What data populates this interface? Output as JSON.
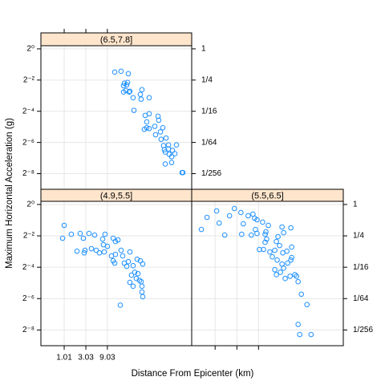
{
  "chart_data": {
    "type": "scatter",
    "xlabel": "Distance From Epicenter (km)",
    "ylabel": "Maximum Horizontal Acceleration (g)",
    "log_x": true,
    "log_y": true,
    "grid": true,
    "color": "#1e90ff",
    "strip_color": "#ffe5cc",
    "xlim": [
      0.31,
      650
    ],
    "ylim": [
      0.00195,
      1.15
    ],
    "xticks": [
      1.01,
      3.03,
      9.03
    ],
    "yticks": [
      {
        "value": 1,
        "label": "2⁰"
      },
      {
        "value": 0.25,
        "label": "2⁻²"
      },
      {
        "value": 0.0625,
        "label": "2⁻⁴"
      },
      {
        "value": 0.015625,
        "label": "2⁻⁶"
      },
      {
        "value": 0.00390625,
        "label": "2⁻⁸"
      }
    ],
    "y2ticks": [
      {
        "value": 1,
        "label": "1"
      },
      {
        "value": 0.25,
        "label": "1/4"
      },
      {
        "value": 0.0625,
        "label": "1/16"
      },
      {
        "value": 0.015625,
        "label": "1/64"
      },
      {
        "value": 0.00390625,
        "label": "1/256"
      }
    ],
    "panels": [
      {
        "name": "(6.5,7.8]",
        "x": [
          13.1,
          18.1,
          26.1,
          21.3,
          24.1,
          20.5,
          25.1,
          23.1,
          27.2,
          20.5,
          28.3,
          52.1,
          48.1,
          50,
          33.3,
          75.2,
          34.7,
          61.4,
          75.2,
          118,
          66.5,
          66.5,
          58.9,
          75.2,
          100,
          122,
          104,
          133,
          150,
          177,
          138,
          163,
          156,
          200,
          200,
          170,
          245,
          208,
          300,
          277,
          170,
          235,
          235,
          415,
          399
        ],
        "y": [
          0.357,
          0.37,
          0.332,
          0.217,
          0.202,
          0.195,
          0.225,
          0.157,
          0.147,
          0.147,
          0.152,
          0.163,
          0.132,
          0.107,
          0.114,
          0.114,
          0.065,
          0.052,
          0.056,
          0.05,
          0.039,
          0.03,
          0.028,
          0.029,
          0.032,
          0.042,
          0.022,
          0.025,
          0.03,
          0.019,
          0.018,
          0.0113,
          0.0136,
          0.014,
          0.0117,
          0.0102,
          0.011,
          0.0092,
          0.014,
          0.0095,
          0.006,
          0.0064,
          0.0083,
          0.0041,
          0.0041
        ]
      },
      {
        "name": "(4.9,5.5]",
        "x": [
          1.01,
          0.93,
          1.45,
          2.27,
          3.56,
          2.67,
          4.73,
          8.02,
          7.1,
          12.1,
          15.4,
          13.6,
          7.4,
          9.06,
          4.02,
          1.93,
          2.9,
          5.13,
          2.79,
          6.04,
          7.71,
          11.1,
          13.6,
          18.1,
          19.6,
          28.3,
          12.1,
          13.1,
          21.3,
          26.1,
          24.1,
          33.3,
          40.8,
          48.1,
          54.3,
          36.1,
          30.7,
          42.5,
          39.2,
          28.3,
          46.1,
          50,
          52.1,
          33.3,
          52.1,
          54.3,
          17.4
        ],
        "y": [
          0.397,
          0.225,
          0.268,
          0.278,
          0.278,
          0.225,
          0.259,
          0.268,
          0.217,
          0.225,
          0.209,
          0.195,
          0.169,
          0.157,
          0.142,
          0.127,
          0.132,
          0.132,
          0.118,
          0.118,
          0.123,
          0.103,
          0.11,
          0.132,
          0.103,
          0.123,
          0.083,
          0.075,
          0.075,
          0.08,
          0.065,
          0.067,
          0.089,
          0.083,
          0.072,
          0.05,
          0.044,
          0.047,
          0.038,
          0.032,
          0.035,
          0.033,
          0.027,
          0.027,
          0.021,
          0.017,
          0.0117
        ]
      },
      {
        "name": "(5.5,6.5]",
        "x": [
          0.505,
          0.671,
          1.24,
          1.09,
          2.09,
          2.67,
          3.71,
          1.64,
          3.86,
          4.19,
          5.35,
          6.82,
          7.4,
          8.36,
          7.71,
          8.36,
          6.28,
          12.6,
          11.1,
          13.1,
          14.8,
          12.6,
          13.6,
          9.44,
          11.6,
          16,
          20.5,
          22.2,
          24.1,
          26.1,
          30.7,
          18.1,
          23.1,
          29.5,
          32,
          20.5,
          27.2,
          39.2,
          46.1,
          37.7,
          48.1,
          48.1,
          34.7,
          22.2,
          44.3,
          56.5,
          66.5,
          61.4,
          78.3,
          104,
          66.5,
          72.1,
          128,
          46.1,
          29.5,
          32
        ],
        "y": [
          0.332,
          0.566,
          0.441,
          0.753,
          0.608,
          0.837,
          0.701,
          0.259,
          0.268,
          0.426,
          0.608,
          0.653,
          0.546,
          0.509,
          0.332,
          0.278,
          0.259,
          0.268,
          0.458,
          0.299,
          0.397,
          0.188,
          0.217,
          0.137,
          0.137,
          0.123,
          0.132,
          0.195,
          0.241,
          0.163,
          0.118,
          0.099,
          0.086,
          0.072,
          0.06,
          0.056,
          0.05,
          0.075,
          0.086,
          0.127,
          0.152,
          0.096,
          0.038,
          0.045,
          0.042,
          0.045,
          0.033,
          0.042,
          0.019,
          0.012,
          0.005,
          0.0032,
          0.0032,
          0.357,
          0.37,
          0.288
        ]
      }
    ]
  }
}
